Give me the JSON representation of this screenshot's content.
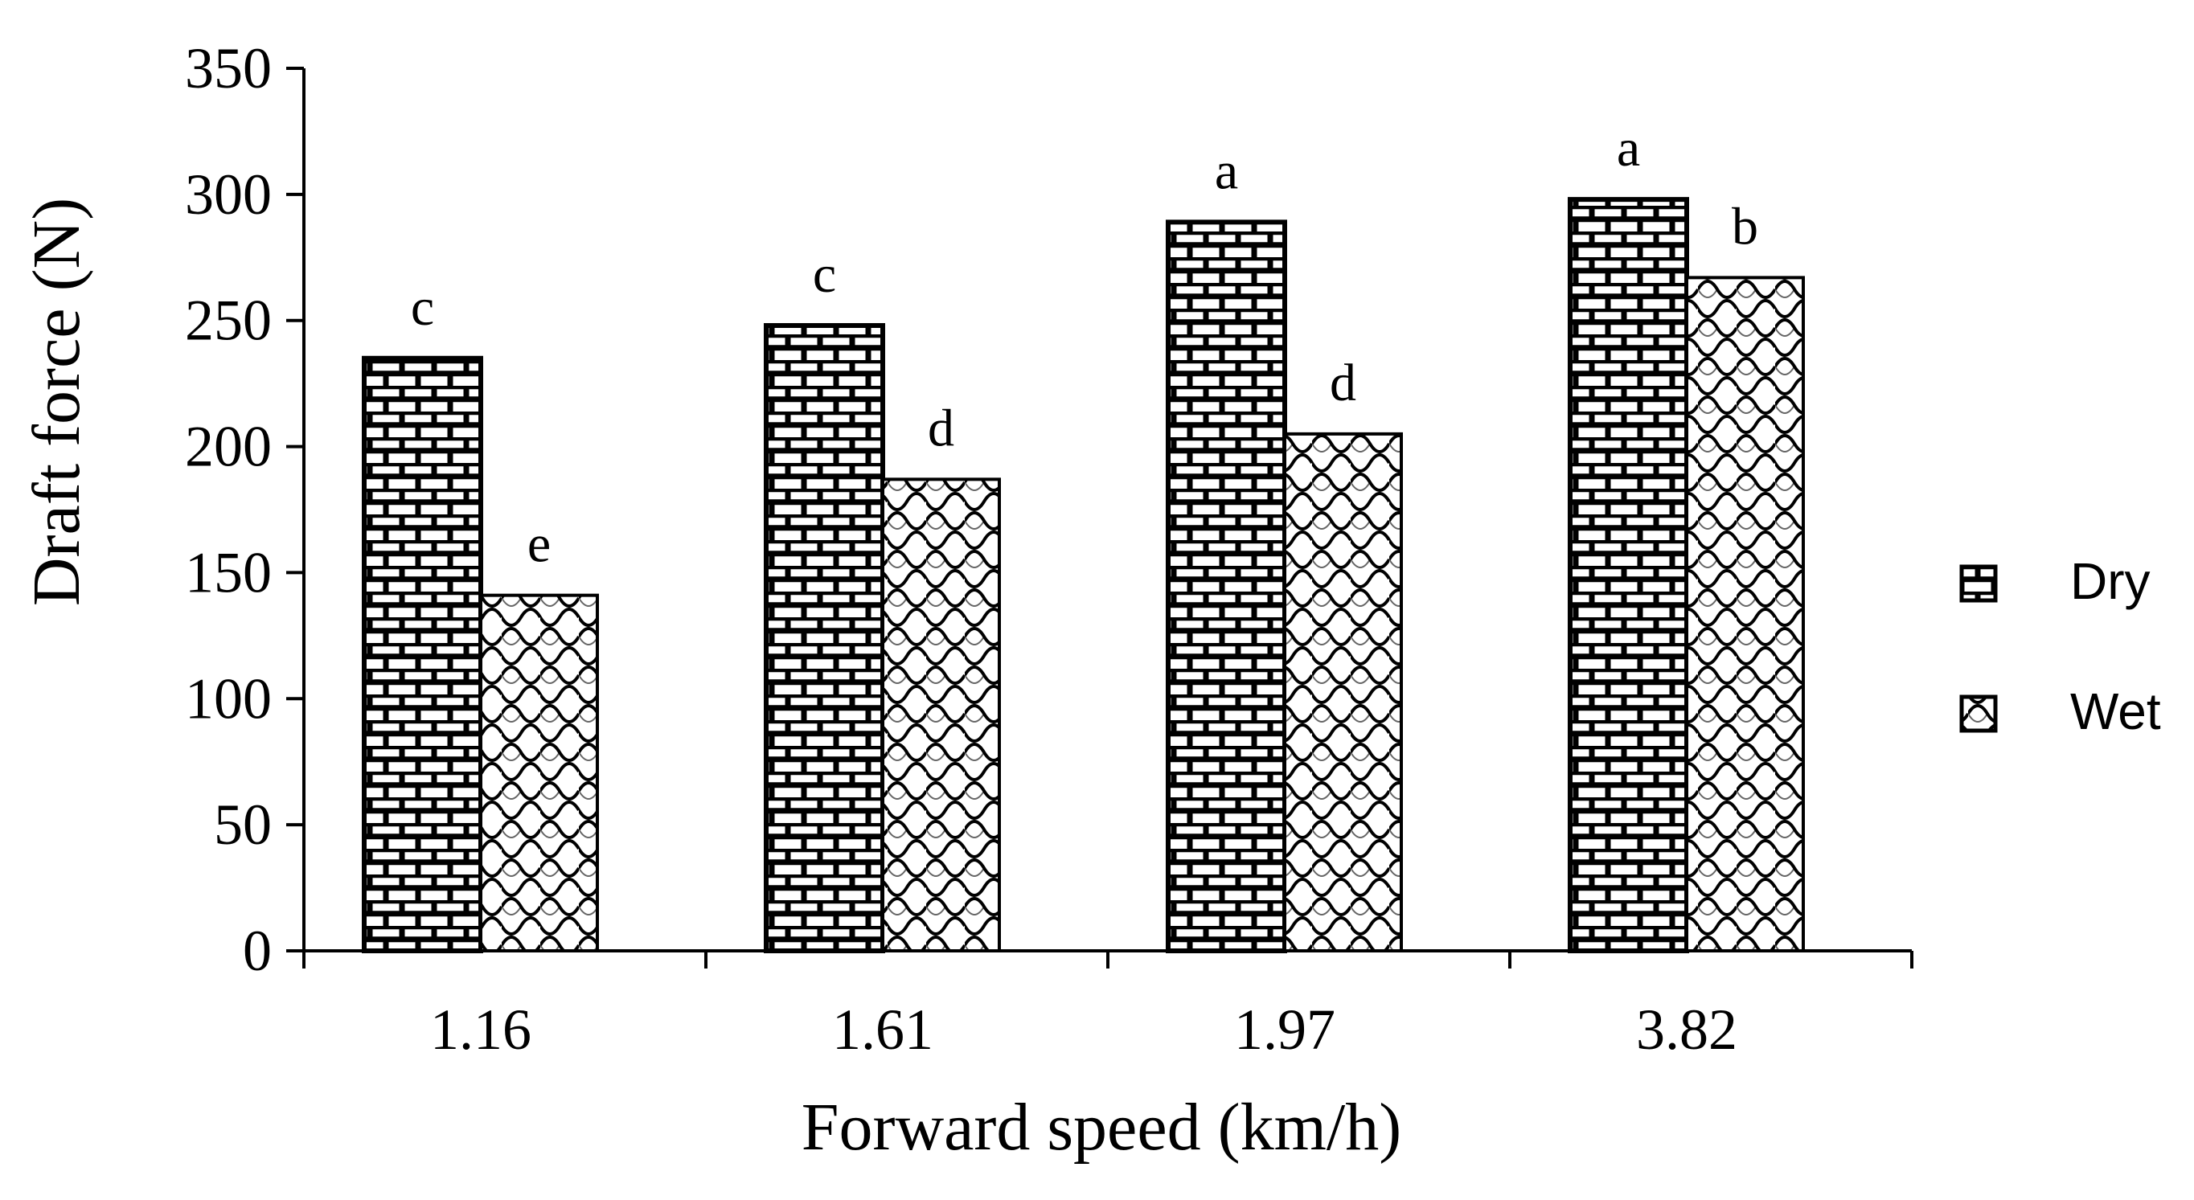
{
  "chart_data": {
    "type": "bar",
    "title": "",
    "xlabel": "Forward speed (km/h)",
    "ylabel": "Draft force (N)",
    "categories": [
      "1.16",
      "1.61",
      "1.97",
      "3.82"
    ],
    "ylim": [
      0,
      350
    ],
    "yticks": [
      "0",
      "50",
      "100",
      "150",
      "200",
      "250",
      "300",
      "350"
    ],
    "grid": false,
    "legend_position": "right",
    "series": [
      {
        "name": "Dry",
        "pattern": "brick",
        "values": [
          235,
          248,
          289,
          298
        ],
        "labels": [
          "c",
          "c",
          "a",
          "a"
        ]
      },
      {
        "name": "Wet",
        "pattern": "scallop",
        "values": [
          141,
          187,
          205,
          267
        ],
        "labels": [
          "e",
          "d",
          "d",
          "b"
        ]
      }
    ]
  }
}
